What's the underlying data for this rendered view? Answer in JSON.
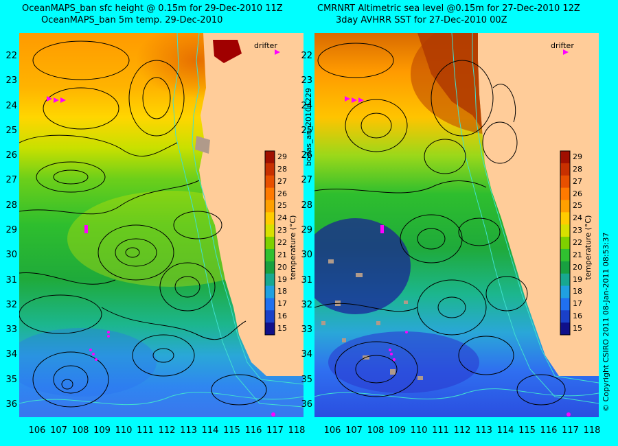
{
  "titles": {
    "left_line1": "OceanMAPS_ban sfc height @ 0.15m for 29-Dec-2010 11Z",
    "left_line2": "OceanMAPS_ban 5m temp. 29-Dec-2010",
    "right_line1": "CMRNRT Altimetric sea level  @0.15m  for 27-Dec-2010 12Z",
    "right_line2": "3day AVHRR SST for 27-Dec-2010 00Z"
  },
  "drifter_label": "drifter",
  "side_labels": {
    "middle": "bodas_an_20101229",
    "right": "© Copyright CSIRO 2011   08-Jan-2011 08:53:37"
  },
  "colorbar": {
    "title": "temperature (°C)",
    "ticks": [
      "29",
      "28",
      "27",
      "26",
      "25",
      "24",
      "23",
      "22",
      "21",
      "20",
      "19",
      "18",
      "17",
      "16",
      "15"
    ]
  },
  "axes": {
    "lat_labels": [
      "22",
      "23",
      "24",
      "25",
      "26",
      "27",
      "28",
      "29",
      "30",
      "31",
      "32",
      "33",
      "34",
      "35",
      "36"
    ],
    "lon_labels": [
      "106",
      "107",
      "108",
      "109",
      "110",
      "111",
      "112",
      "113",
      "114",
      "115",
      "116",
      "117",
      "118"
    ]
  },
  "colors": {
    "background": "#00ffff",
    "land": "#ffcc99",
    "contour": "#000000",
    "coast_bathy": "#40e0d0",
    "drifter": "#ff00ff",
    "missing_data": "#b09a8a"
  }
}
